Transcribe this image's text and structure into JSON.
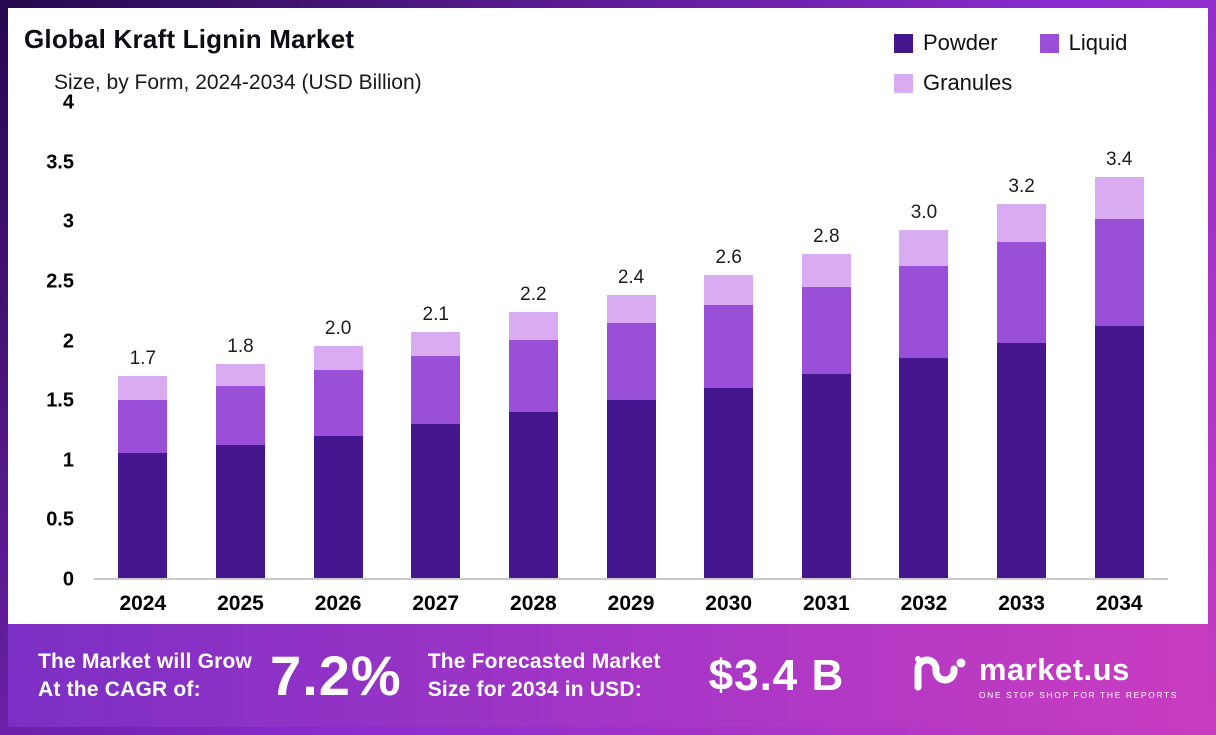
{
  "header": {
    "title": "Global Kraft Lignin Market",
    "subtitle": "Size, by Form, 2024-2034 (USD Billion)"
  },
  "legend": {
    "items": [
      {
        "label": "Powder",
        "color": "#45178f"
      },
      {
        "label": "Liquid",
        "color": "#9a4fd8"
      },
      {
        "label": "Granules",
        "color": "#d9abf0"
      }
    ]
  },
  "chart_data": {
    "type": "bar",
    "stacked": true,
    "title": "Global Kraft Lignin Market Size, by Form, 2024-2034 (USD Billion)",
    "categories": [
      "2024",
      "2025",
      "2026",
      "2027",
      "2028",
      "2029",
      "2030",
      "2031",
      "2032",
      "2033",
      "2034"
    ],
    "series": [
      {
        "name": "Powder",
        "color": "#45178f",
        "values": [
          1.05,
          1.12,
          1.2,
          1.3,
          1.4,
          1.5,
          1.6,
          1.72,
          1.85,
          1.98,
          2.12
        ]
      },
      {
        "name": "Liquid",
        "color": "#9a4fd8",
        "values": [
          0.45,
          0.5,
          0.55,
          0.57,
          0.6,
          0.65,
          0.7,
          0.73,
          0.78,
          0.85,
          0.9
        ]
      },
      {
        "name": "Granules",
        "color": "#d9abf0",
        "values": [
          0.2,
          0.18,
          0.2,
          0.2,
          0.24,
          0.23,
          0.25,
          0.28,
          0.3,
          0.32,
          0.36
        ]
      }
    ],
    "total_labels": [
      "1.7",
      "1.8",
      "2.0",
      "2.1",
      "2.2",
      "2.4",
      "2.6",
      "2.8",
      "3.0",
      "3.2",
      "3.4"
    ],
    "ylim": [
      0,
      4
    ],
    "ytick_labels": [
      "0",
      "0.5",
      "1",
      "1.5",
      "2",
      "2.5",
      "3",
      "3.5",
      "4"
    ],
    "grid": false,
    "legend_position": "top-right"
  },
  "banner": {
    "cagr_label_line1": "The Market will Grow",
    "cagr_label_line2": "At the CAGR of:",
    "cagr_value": "7.2%",
    "forecast_label_line1": "The Forecasted Market",
    "forecast_label_line2": "Size for 2034 in USD:",
    "forecast_value": "$3.4 B",
    "brand_name": "market.us",
    "brand_tagline": "ONE STOP SHOP FOR THE REPORTS"
  }
}
